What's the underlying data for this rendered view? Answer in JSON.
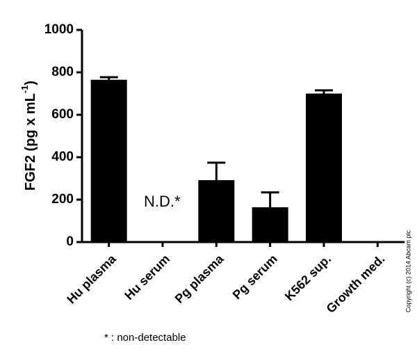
{
  "chart_data": {
    "type": "bar",
    "y_label_parts": [
      "FGF2 (pg x mL",
      "-1",
      ")"
    ],
    "categories": [
      "Hu plasma",
      "Hu serum",
      "Pg plasma",
      "Pg serum",
      "K562 sup.",
      "Growth med."
    ],
    "values": [
      765,
      null,
      292,
      164,
      700,
      null
    ],
    "errors": [
      12,
      null,
      82,
      70,
      15,
      null
    ],
    "color": "#000000",
    "ylim": [
      0,
      1000
    ],
    "yticks": [
      0,
      200,
      400,
      600,
      800,
      1000
    ],
    "annotations": [
      "N.D.*",
      "* : non-detectable"
    ],
    "copyright": "Copyright (c) 2014 Abcam plc"
  }
}
